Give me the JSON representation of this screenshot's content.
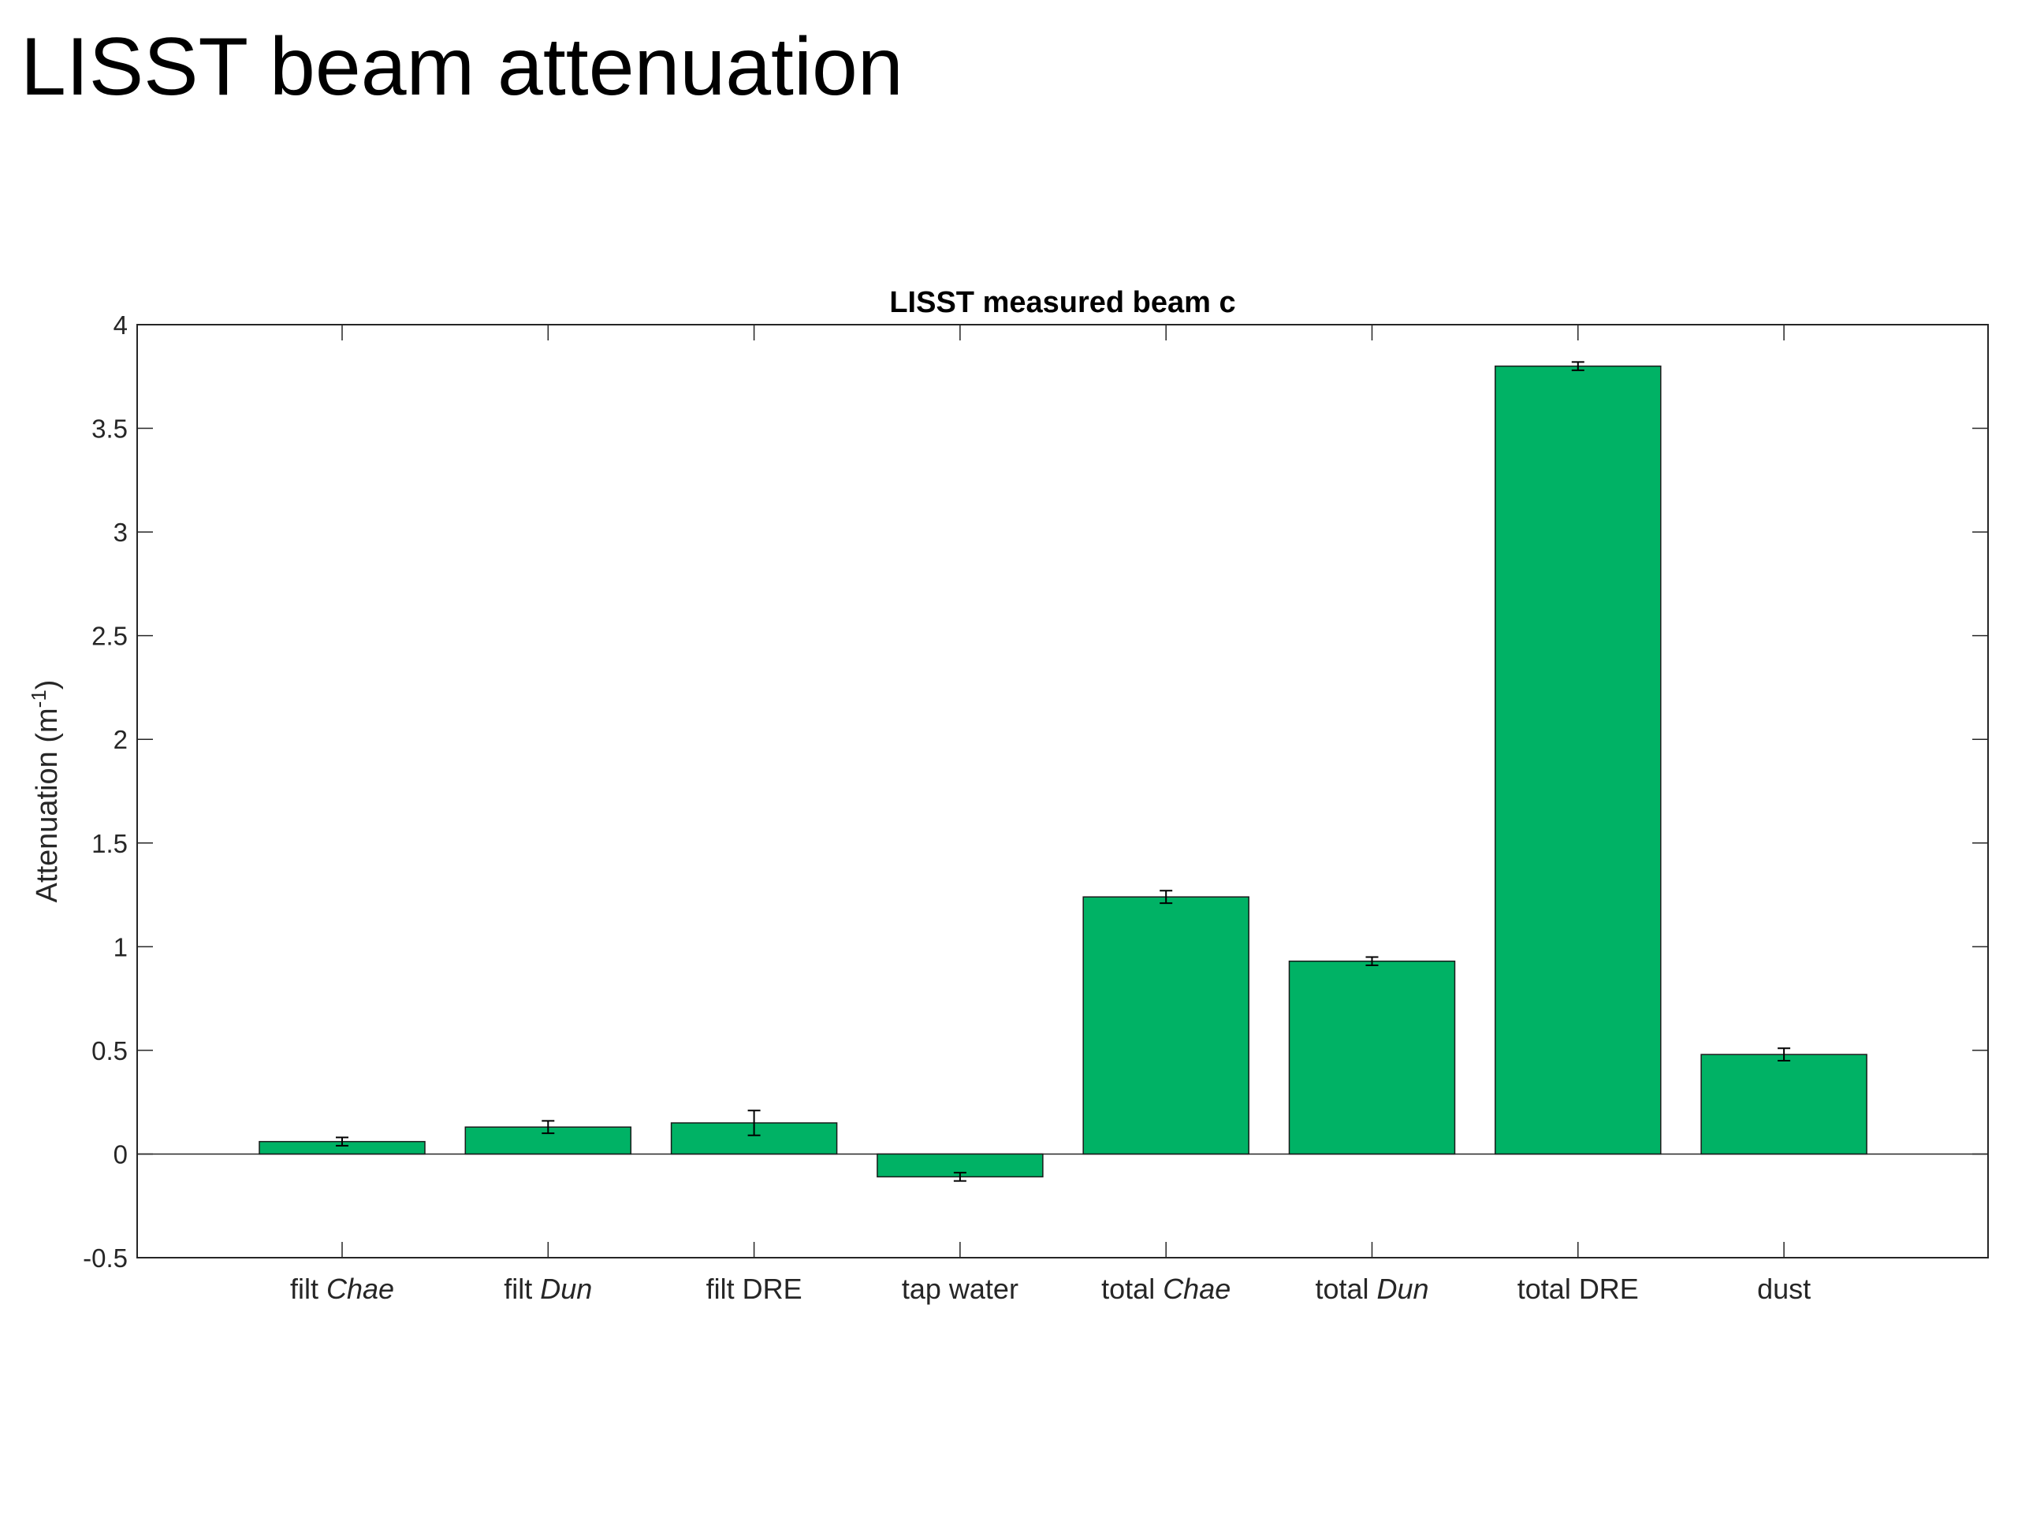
{
  "slide": {
    "title": "LISST beam attenuation"
  },
  "chart_data": {
    "type": "bar",
    "title": "LISST measured beam c",
    "xlabel": "",
    "ylabel_parts": {
      "main": "Attenuation (m",
      "superscript": "-1",
      "close": ")"
    },
    "ylim": [
      -0.5,
      4
    ],
    "yticks": [
      "-0.5",
      "0",
      "0.5",
      "1",
      "1.5",
      "2",
      "2.5",
      "3",
      "3.5",
      "4"
    ],
    "categories": [
      {
        "prefix": "filt ",
        "name": "Chae",
        "italic": true
      },
      {
        "prefix": "filt ",
        "name": "Dun",
        "italic": true
      },
      {
        "prefix": "filt ",
        "name": "DRE",
        "italic": false
      },
      {
        "prefix": "",
        "name": "tap water",
        "italic": false
      },
      {
        "prefix": "total ",
        "name": "Chae",
        "italic": true
      },
      {
        "prefix": "total ",
        "name": "Dun",
        "italic": true
      },
      {
        "prefix": "total ",
        "name": "DRE",
        "italic": false
      },
      {
        "prefix": "",
        "name": "dust",
        "italic": false
      }
    ],
    "values": [
      0.06,
      0.13,
      0.15,
      -0.11,
      1.24,
      0.93,
      3.8,
      0.48
    ],
    "errors": [
      0.02,
      0.03,
      0.06,
      0.02,
      0.03,
      0.02,
      0.02,
      0.03
    ],
    "bar_color": "#00b265",
    "grid": false,
    "legend": "none"
  }
}
